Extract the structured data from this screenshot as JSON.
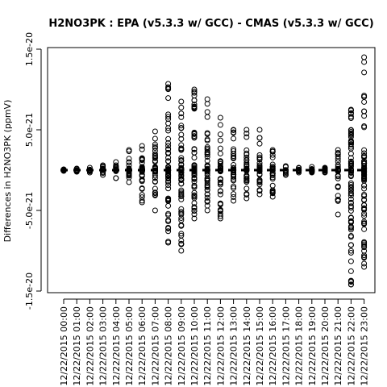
{
  "chart_data": {
    "type": "scatter",
    "title": "H2NO3PK : EPA (v5.3.3 w/ GCC) - CMAS (v5.3.3 w/ GCC)",
    "xlabel": "",
    "ylabel": "Differences in H2NO3PK (ppmV)",
    "ylim": [
      -1.5e-20,
      1.5e-20
    ],
    "y_ticks": [
      -1.5e-20,
      -5e-21,
      5e-21,
      1.5e-20
    ],
    "y_tick_labels": [
      "-1.5e-20",
      "-5.0e-21",
      "5.0e-21",
      "1.5e-20"
    ],
    "categories": [
      "12/22/2015 00:00",
      "12/22/2015 01:00",
      "12/22/2015 02:00",
      "12/22/2015 03:00",
      "12/22/2015 04:00",
      "12/22/2015 05:00",
      "12/22/2015 06:00",
      "12/22/2015 07:00",
      "12/22/2015 08:00",
      "12/22/2015 09:00",
      "12/22/2015 10:00",
      "12/22/2015 11:00",
      "12/22/2015 12:00",
      "12/22/2015 13:00",
      "12/22/2015 14:00",
      "12/22/2015 15:00",
      "12/22/2015 16:00",
      "12/22/2015 17:00",
      "12/22/2015 18:00",
      "12/22/2015 19:00",
      "12/22/2015 20:00",
      "12/22/2015 21:00",
      "12/22/2015 22:00",
      "12/22/2015 23:00"
    ],
    "range_max": [
      1e-22,
      2e-22,
      3e-22,
      6e-22,
      1e-21,
      2.5e-21,
      3e-21,
      4.8e-21,
      1.07e-20,
      8.5e-21,
      1e-20,
      8.8e-21,
      6.5e-21,
      5e-21,
      5e-21,
      5e-21,
      2.5e-21,
      5e-22,
      3e-22,
      4e-22,
      3e-22,
      2.5e-21,
      7.5e-21,
      1.4e-20
    ],
    "range_min": [
      -1e-22,
      -2e-22,
      -3e-22,
      -6e-22,
      -1e-21,
      -1.5e-21,
      -4e-21,
      -5e-21,
      -9e-21,
      -1e-20,
      -6e-21,
      -5e-21,
      -6e-21,
      -3.8e-21,
      -3.5e-21,
      -3e-21,
      -3.3e-21,
      -6e-22,
      -3e-22,
      -3e-22,
      -3e-22,
      -5.5e-21,
      -1.42e-20,
      -1.2e-20
    ],
    "grid": false,
    "legend": "none",
    "marker": "open-circle",
    "reference_line_y": 0
  }
}
